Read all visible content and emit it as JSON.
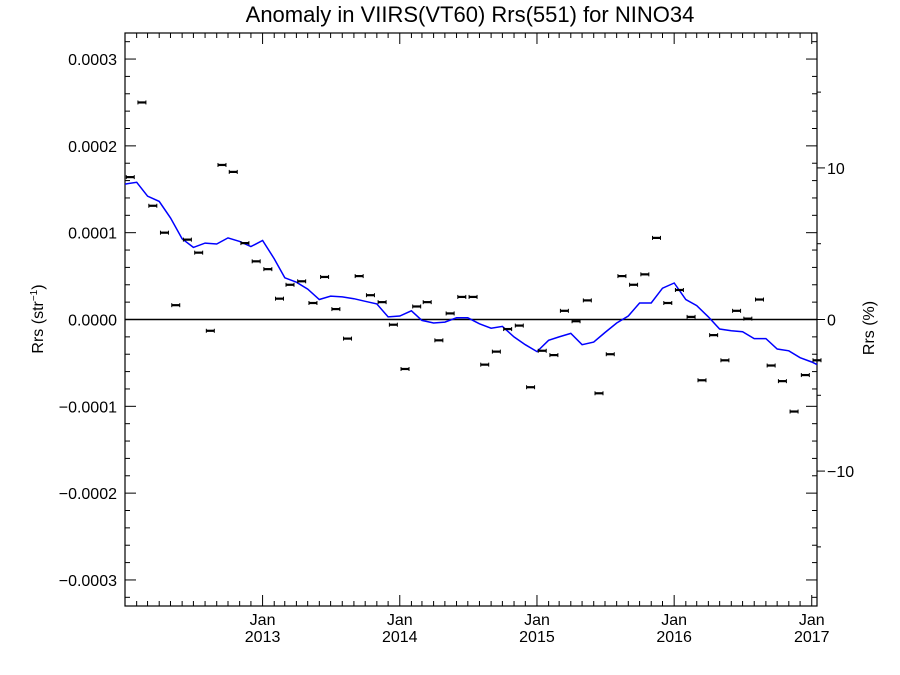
{
  "chart_data": {
    "type": "scatter",
    "title": "Anomaly in VIIRS(VT60) Rrs(551) for NINO34",
    "ylabel_left": {
      "base": "Rrs (str",
      "sup": "−1",
      "close": ")"
    },
    "ylabel_right": "Rrs (%)",
    "x_range": [
      "2012-01-01",
      "2017-01-15"
    ],
    "ylim": [
      -0.00033,
      0.00033
    ],
    "y2lim": [
      -18.9,
      18.9
    ],
    "left_ticks": [
      {
        "value": 0.0003,
        "label": "0.0003"
      },
      {
        "value": 0.0002,
        "label": "0.0002"
      },
      {
        "value": 0.0001,
        "label": "0.0001"
      },
      {
        "value": 0.0,
        "label": "0.0000"
      },
      {
        "value": -0.0001,
        "label": "−0.0001"
      },
      {
        "value": -0.0002,
        "label": "−0.0002"
      },
      {
        "value": -0.0003,
        "label": "−0.0003"
      }
    ],
    "right_ticks": [
      {
        "value": 10,
        "label": "10"
      },
      {
        "value": 0,
        "label": "0"
      },
      {
        "value": -10,
        "label": "−10"
      }
    ],
    "x_ticks": [
      {
        "date": "2013-01-01",
        "month": "Jan",
        "year": "2013"
      },
      {
        "date": "2014-01-01",
        "month": "Jan",
        "year": "2014"
      },
      {
        "date": "2015-01-01",
        "month": "Jan",
        "year": "2015"
      },
      {
        "date": "2016-01-01",
        "month": "Jan",
        "year": "2016"
      },
      {
        "date": "2017-01-01",
        "month": "Jan",
        "year": "2017"
      }
    ],
    "zero_line": 0,
    "grid": false,
    "legend": "none",
    "series": [
      {
        "type": "scatter",
        "color": "#000000",
        "x": [
          "2012-01-15",
          "2012-02-15",
          "2012-03-15",
          "2012-04-15",
          "2012-05-15",
          "2012-06-15",
          "2012-07-15",
          "2012-08-15",
          "2012-09-15",
          "2012-10-15",
          "2012-11-15",
          "2012-12-15",
          "2013-01-15",
          "2013-02-15",
          "2013-03-15",
          "2013-04-15",
          "2013-05-15",
          "2013-06-15",
          "2013-07-15",
          "2013-08-15",
          "2013-09-15",
          "2013-10-15",
          "2013-11-15",
          "2013-12-15",
          "2014-01-15",
          "2014-02-15",
          "2014-03-15",
          "2014-04-15",
          "2014-05-15",
          "2014-06-15",
          "2014-07-15",
          "2014-08-15",
          "2014-09-15",
          "2014-10-15",
          "2014-11-15",
          "2014-12-15",
          "2015-01-15",
          "2015-02-15",
          "2015-03-15",
          "2015-04-15",
          "2015-05-15",
          "2015-06-15",
          "2015-07-15",
          "2015-08-15",
          "2015-09-15",
          "2015-10-15",
          "2015-11-15",
          "2015-12-15",
          "2016-01-15",
          "2016-02-15",
          "2016-03-15",
          "2016-04-15",
          "2016-05-15",
          "2016-06-15",
          "2016-07-15",
          "2016-08-15",
          "2016-09-15",
          "2016-10-15",
          "2016-11-15",
          "2016-12-15",
          "2017-01-15"
        ],
        "values": [
          0.000164,
          0.00025,
          0.000131,
          0.0001,
          1.65e-05,
          9.2e-05,
          7.7e-05,
          -1.3e-05,
          0.000178,
          0.00017,
          8.8e-05,
          6.7e-05,
          5.8e-05,
          2.4e-05,
          4e-05,
          4.4e-05,
          1.9e-05,
          4.9e-05,
          1.2e-05,
          -2.2e-05,
          5e-05,
          2.8e-05,
          2e-05,
          -6e-06,
          -5.7e-05,
          1.5e-05,
          2e-05,
          -2.4e-05,
          7e-06,
          2.6e-05,
          2.6e-05,
          -5.2e-05,
          -3.7e-05,
          -1.1e-05,
          -7e-06,
          -7.8e-05,
          -3.6e-05,
          -4.1e-05,
          1e-05,
          -2e-06,
          2.2e-05,
          -8.5e-05,
          -4e-05,
          5e-05,
          4e-05,
          5.2e-05,
          9.4e-05,
          1.9e-05,
          3.4e-05,
          3e-06,
          -7e-05,
          -1.8e-05,
          -4.7e-05,
          1e-05,
          1e-06,
          2.3e-05,
          -5.3e-05,
          -7.1e-05,
          -0.000106,
          -6.4e-05,
          -4.7e-05
        ]
      },
      {
        "type": "line",
        "color": "#0000ff",
        "x": [
          "2012-01-01",
          "2012-02-01",
          "2012-03-01",
          "2012-04-01",
          "2012-05-01",
          "2012-06-01",
          "2012-07-01",
          "2012-08-01",
          "2012-09-01",
          "2012-10-01",
          "2012-11-01",
          "2012-12-01",
          "2013-01-01",
          "2013-02-01",
          "2013-03-01",
          "2013-04-01",
          "2013-05-01",
          "2013-06-01",
          "2013-07-01",
          "2013-08-01",
          "2013-09-01",
          "2013-10-01",
          "2013-11-01",
          "2013-12-01",
          "2014-01-01",
          "2014-02-01",
          "2014-03-01",
          "2014-04-01",
          "2014-05-01",
          "2014-06-01",
          "2014-07-01",
          "2014-08-01",
          "2014-09-01",
          "2014-10-01",
          "2014-11-01",
          "2014-12-01",
          "2015-01-01",
          "2015-02-01",
          "2015-03-01",
          "2015-04-01",
          "2015-05-01",
          "2015-06-01",
          "2015-07-01",
          "2015-08-01",
          "2015-09-01",
          "2015-10-01",
          "2015-11-01",
          "2015-12-01",
          "2016-01-01",
          "2016-02-01",
          "2016-03-01",
          "2016-04-01",
          "2016-05-01",
          "2016-06-01",
          "2016-07-01",
          "2016-08-01",
          "2016-09-01",
          "2016-10-01",
          "2016-11-01",
          "2016-12-01",
          "2017-01-01",
          "2017-01-15"
        ],
        "values": [
          0.000156,
          0.000158,
          0.000142,
          0.000136,
          0.000117,
          9.3e-05,
          8.3e-05,
          8.8e-05,
          8.7e-05,
          9.4e-05,
          9e-05,
          8.4e-05,
          9.1e-05,
          7e-05,
          4.8e-05,
          4.3e-05,
          3.5e-05,
          2.3e-05,
          2.7e-05,
          2.6e-05,
          2.4e-05,
          2.1e-05,
          1.8e-05,
          3e-06,
          4e-06,
          1e-05,
          -1e-06,
          -4e-06,
          -3e-06,
          2e-06,
          2e-06,
          -5e-06,
          -1e-05,
          -8e-06,
          -2e-05,
          -2.9e-05,
          -3.7e-05,
          -2.4e-05,
          -2e-05,
          -1.6e-05,
          -2.9e-05,
          -2.6e-05,
          -1.5e-05,
          -4e-06,
          4e-06,
          1.9e-05,
          1.9e-05,
          3.6e-05,
          4.2e-05,
          2.3e-05,
          1.6e-05,
          3e-06,
          -1.1e-05,
          -1.3e-05,
          -1.4e-05,
          -2.2e-05,
          -2.2e-05,
          -3.4e-05,
          -3.6e-05,
          -4.4e-05,
          -4.9e-05,
          -5.2e-05
        ]
      }
    ]
  }
}
